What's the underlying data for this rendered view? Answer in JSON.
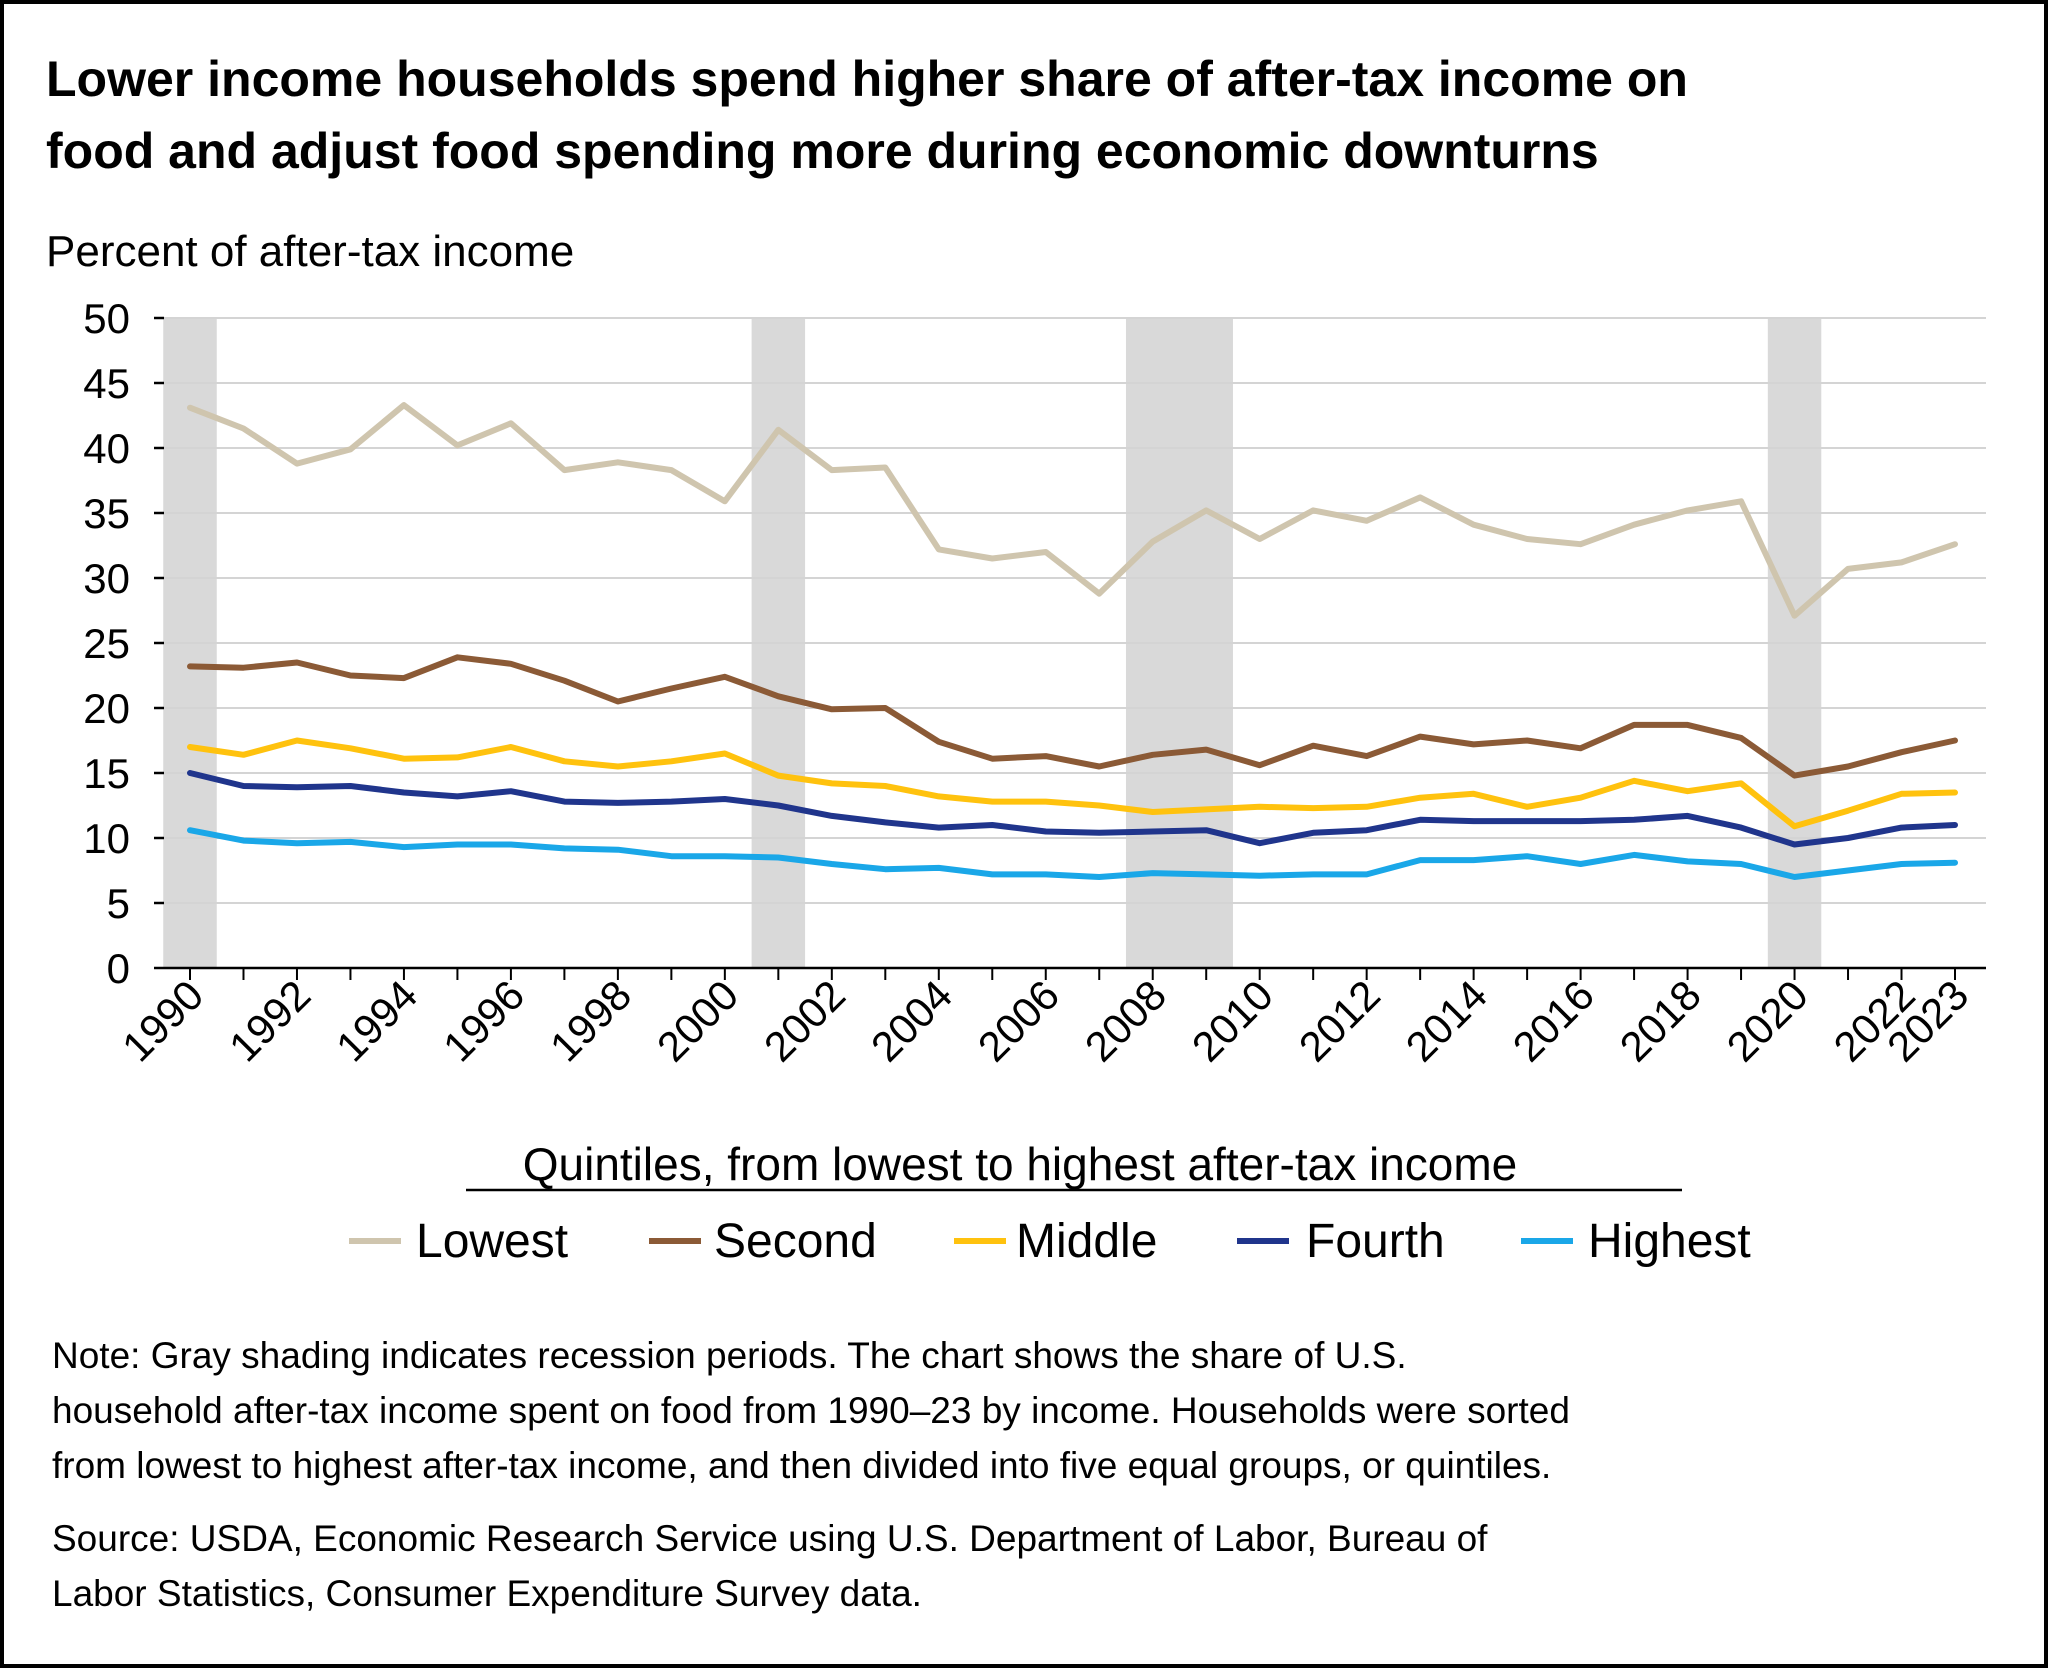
{
  "title_lines": [
    "Lower income households spend higher share of after-tax income on",
    "food and adjust food spending more during economic downturns"
  ],
  "note_lines": [
    "Note: Gray shading indicates recession periods. The chart shows the share of U.S.",
    "household after-tax income spent on food from 1990–23 by income. Households were sorted",
    "from lowest to highest after-tax income, and then divided into five equal groups, or quintiles."
  ],
  "source_lines": [
    "Source: USDA, Economic Research Service using U.S. Department of Labor, Bureau of",
    "Labor Statistics, Consumer Expenditure Survey data."
  ],
  "chart_data": {
    "type": "line",
    "ylabel": "Percent of after-tax income",
    "ylim": [
      0,
      50
    ],
    "yticks": [
      0,
      5,
      10,
      15,
      20,
      25,
      30,
      35,
      40,
      45,
      50
    ],
    "xlim": [
      1990,
      2023
    ],
    "xtick_labels": [
      "1990",
      "1992",
      "1994",
      "1996",
      "1998",
      "2000",
      "2002",
      "2004",
      "2006",
      "2008",
      "2010",
      "2012",
      "2014",
      "2016",
      "2018",
      "2020",
      "2022",
      "2023"
    ],
    "grid": "horizontal",
    "legend_title": "Quintiles, from lowest to highest after-tax income",
    "legend_placement": "bottom",
    "recession_shading": [
      {
        "start": 1990,
        "end": 1991
      },
      {
        "start": 2001,
        "end": 2002
      },
      {
        "start": 2008,
        "end": 2010
      },
      {
        "start": 2020,
        "end": 2021
      }
    ],
    "x": [
      1990,
      1991,
      1992,
      1993,
      1994,
      1995,
      1996,
      1997,
      1998,
      1999,
      2000,
      2001,
      2002,
      2003,
      2004,
      2005,
      2006,
      2007,
      2008,
      2009,
      2010,
      2011,
      2012,
      2013,
      2014,
      2015,
      2016,
      2017,
      2018,
      2019,
      2020,
      2021,
      2022,
      2023
    ],
    "series": [
      {
        "name": "Lowest",
        "color": "#cfc5ae",
        "values": [
          43.1,
          41.5,
          38.8,
          39.9,
          43.3,
          40.2,
          41.9,
          38.3,
          38.9,
          38.3,
          35.9,
          41.4,
          38.3,
          38.5,
          32.2,
          31.5,
          32.0,
          28.8,
          32.8,
          35.2,
          33.0,
          35.2,
          34.4,
          36.2,
          34.1,
          33.0,
          32.6,
          34.1,
          35.2,
          35.9,
          27.1,
          30.7,
          31.2,
          32.6
        ]
      },
      {
        "name": "Second",
        "color": "#8b5a36",
        "values": [
          23.2,
          23.1,
          23.5,
          22.5,
          22.3,
          23.9,
          23.4,
          22.1,
          20.5,
          21.5,
          22.4,
          20.9,
          19.9,
          20.0,
          17.4,
          16.1,
          16.3,
          15.5,
          16.4,
          16.8,
          15.6,
          17.1,
          16.3,
          17.8,
          17.2,
          17.5,
          16.9,
          18.7,
          18.7,
          17.7,
          14.8,
          15.5,
          16.6,
          17.5
        ]
      },
      {
        "name": "Middle",
        "color": "#ffc20e",
        "values": [
          17.0,
          16.4,
          17.5,
          16.9,
          16.1,
          16.2,
          17.0,
          15.9,
          15.5,
          15.9,
          16.5,
          14.8,
          14.2,
          14.0,
          13.2,
          12.8,
          12.8,
          12.5,
          12.0,
          12.2,
          12.4,
          12.3,
          12.4,
          13.1,
          13.4,
          12.4,
          13.1,
          14.4,
          13.6,
          14.2,
          10.9,
          12.1,
          13.4,
          13.5
        ]
      },
      {
        "name": "Fourth",
        "color": "#20358c",
        "values": [
          15.0,
          14.0,
          13.9,
          14.0,
          13.5,
          13.2,
          13.6,
          12.8,
          12.7,
          12.8,
          13.0,
          12.5,
          11.7,
          11.2,
          10.8,
          11.0,
          10.5,
          10.4,
          10.5,
          10.6,
          9.6,
          10.4,
          10.6,
          11.4,
          11.3,
          11.3,
          11.3,
          11.4,
          11.7,
          10.8,
          9.5,
          10.0,
          10.8,
          11.0
        ]
      },
      {
        "name": "Highest",
        "color": "#1aa7e8",
        "values": [
          10.6,
          9.8,
          9.6,
          9.7,
          9.3,
          9.5,
          9.5,
          9.2,
          9.1,
          8.6,
          8.6,
          8.5,
          8.0,
          7.6,
          7.7,
          7.2,
          7.2,
          7.0,
          7.3,
          7.2,
          7.1,
          7.2,
          7.2,
          8.3,
          8.3,
          8.6,
          8.0,
          8.7,
          8.2,
          8.0,
          7.0,
          7.5,
          8.0,
          8.1
        ]
      }
    ]
  }
}
